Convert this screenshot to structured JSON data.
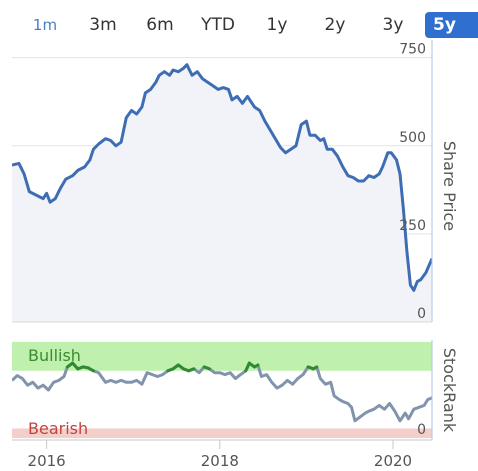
{
  "range_tabs": [
    "1m",
    "3m",
    "6m",
    "YTD",
    "1y",
    "2y",
    "3y",
    "5y"
  ],
  "active_tab": "5y",
  "colors": {
    "price_line": "#3f6db3",
    "price_fill": "#f1f3f9",
    "rank_line": "#8193ad",
    "bullish_band": "#bff0ae",
    "bullish_line": "#2e8b2e",
    "bearish_band": "#f3cfcc",
    "bullish_text": "#3d8b2f",
    "bearish_text": "#c0443f",
    "axis_right": "#aec6ea",
    "active_tab_bg": "#2f6fd0"
  },
  "chart_data": [
    {
      "type": "area",
      "name": "share-price",
      "ylabel": "Share Price",
      "ylim": [
        0,
        800
      ],
      "yticks": [
        "750",
        "500",
        "250",
        "0"
      ],
      "ytick_values": [
        750,
        500,
        250,
        0
      ],
      "xlim": [
        2015.6,
        2020.45
      ],
      "grid": true,
      "points": [
        [
          2015.6,
          445
        ],
        [
          2015.68,
          450
        ],
        [
          2015.74,
          420
        ],
        [
          2015.8,
          370
        ],
        [
          2015.88,
          360
        ],
        [
          2015.96,
          350
        ],
        [
          2016.0,
          365
        ],
        [
          2016.04,
          340
        ],
        [
          2016.1,
          350
        ],
        [
          2016.16,
          380
        ],
        [
          2016.22,
          405
        ],
        [
          2016.3,
          415
        ],
        [
          2016.36,
          430
        ],
        [
          2016.44,
          440
        ],
        [
          2016.5,
          460
        ],
        [
          2016.54,
          490
        ],
        [
          2016.6,
          505
        ],
        [
          2016.68,
          520
        ],
        [
          2016.74,
          515
        ],
        [
          2016.8,
          500
        ],
        [
          2016.86,
          510
        ],
        [
          2016.92,
          580
        ],
        [
          2016.98,
          600
        ],
        [
          2017.04,
          590
        ],
        [
          2017.1,
          610
        ],
        [
          2017.14,
          650
        ],
        [
          2017.2,
          660
        ],
        [
          2017.26,
          680
        ],
        [
          2017.3,
          700
        ],
        [
          2017.36,
          710
        ],
        [
          2017.42,
          700
        ],
        [
          2017.46,
          715
        ],
        [
          2017.52,
          710
        ],
        [
          2017.58,
          720
        ],
        [
          2017.62,
          730
        ],
        [
          2017.68,
          700
        ],
        [
          2017.74,
          710
        ],
        [
          2017.8,
          690
        ],
        [
          2017.86,
          680
        ],
        [
          2017.92,
          670
        ],
        [
          2017.98,
          660
        ],
        [
          2018.04,
          665
        ],
        [
          2018.1,
          660
        ],
        [
          2018.14,
          630
        ],
        [
          2018.2,
          640
        ],
        [
          2018.26,
          620
        ],
        [
          2018.32,
          640
        ],
        [
          2018.4,
          610
        ],
        [
          2018.46,
          600
        ],
        [
          2018.52,
          570
        ],
        [
          2018.58,
          545
        ],
        [
          2018.64,
          520
        ],
        [
          2018.7,
          495
        ],
        [
          2018.76,
          480
        ],
        [
          2018.82,
          490
        ],
        [
          2018.88,
          500
        ],
        [
          2018.94,
          560
        ],
        [
          2019.0,
          570
        ],
        [
          2019.04,
          530
        ],
        [
          2019.1,
          530
        ],
        [
          2019.16,
          515
        ],
        [
          2019.2,
          520
        ],
        [
          2019.24,
          490
        ],
        [
          2019.3,
          490
        ],
        [
          2019.36,
          470
        ],
        [
          2019.42,
          440
        ],
        [
          2019.48,
          415
        ],
        [
          2019.54,
          410
        ],
        [
          2019.6,
          400
        ],
        [
          2019.66,
          400
        ],
        [
          2019.72,
          415
        ],
        [
          2019.78,
          410
        ],
        [
          2019.84,
          420
        ],
        [
          2019.88,
          440
        ],
        [
          2019.94,
          480
        ],
        [
          2019.98,
          480
        ],
        [
          2020.04,
          460
        ],
        [
          2020.08,
          420
        ],
        [
          2020.12,
          320
        ],
        [
          2020.16,
          200
        ],
        [
          2020.2,
          105
        ],
        [
          2020.24,
          90
        ],
        [
          2020.28,
          115
        ],
        [
          2020.32,
          120
        ],
        [
          2020.38,
          140
        ],
        [
          2020.45,
          180
        ]
      ]
    },
    {
      "type": "line",
      "name": "stockrank",
      "ylabel": "StockRank",
      "ylim": [
        -2,
        102
      ],
      "yticks": [
        "0"
      ],
      "ytick_values": [
        0
      ],
      "xlim": [
        2015.6,
        2020.45
      ],
      "bands": [
        {
          "label": "Bullish",
          "from": 70,
          "to": 100
        },
        {
          "label": "Bearish",
          "from": 0,
          "to": 10
        }
      ],
      "xticks": [
        "2016",
        "2018",
        "2020"
      ],
      "xtick_values": [
        2016,
        2018,
        2020
      ],
      "points": [
        [
          2015.6,
          60
        ],
        [
          2015.66,
          65
        ],
        [
          2015.72,
          62
        ],
        [
          2015.78,
          55
        ],
        [
          2015.84,
          58
        ],
        [
          2015.9,
          52
        ],
        [
          2015.96,
          55
        ],
        [
          2016.02,
          50
        ],
        [
          2016.08,
          58
        ],
        [
          2016.14,
          60
        ],
        [
          2016.2,
          64
        ],
        [
          2016.24,
          74
        ],
        [
          2016.3,
          78
        ],
        [
          2016.36,
          72
        ],
        [
          2016.42,
          74
        ],
        [
          2016.48,
          73
        ],
        [
          2016.54,
          70
        ],
        [
          2016.6,
          68
        ],
        [
          2016.68,
          58
        ],
        [
          2016.74,
          60
        ],
        [
          2016.8,
          58
        ],
        [
          2016.86,
          60
        ],
        [
          2016.92,
          58
        ],
        [
          2016.98,
          58
        ],
        [
          2017.04,
          60
        ],
        [
          2017.1,
          56
        ],
        [
          2017.16,
          68
        ],
        [
          2017.22,
          66
        ],
        [
          2017.28,
          64
        ],
        [
          2017.34,
          66
        ],
        [
          2017.4,
          70
        ],
        [
          2017.46,
          72
        ],
        [
          2017.52,
          76
        ],
        [
          2017.58,
          72
        ],
        [
          2017.64,
          70
        ],
        [
          2017.7,
          72
        ],
        [
          2017.76,
          68
        ],
        [
          2017.82,
          74
        ],
        [
          2017.88,
          72
        ],
        [
          2017.94,
          68
        ],
        [
          2018.0,
          68
        ],
        [
          2018.06,
          66
        ],
        [
          2018.12,
          68
        ],
        [
          2018.18,
          62
        ],
        [
          2018.24,
          66
        ],
        [
          2018.3,
          70
        ],
        [
          2018.34,
          78
        ],
        [
          2018.4,
          74
        ],
        [
          2018.44,
          76
        ],
        [
          2018.48,
          64
        ],
        [
          2018.54,
          66
        ],
        [
          2018.6,
          58
        ],
        [
          2018.66,
          52
        ],
        [
          2018.72,
          55
        ],
        [
          2018.78,
          60
        ],
        [
          2018.84,
          56
        ],
        [
          2018.9,
          62
        ],
        [
          2018.96,
          66
        ],
        [
          2019.02,
          74
        ],
        [
          2019.08,
          72
        ],
        [
          2019.12,
          74
        ],
        [
          2019.16,
          62
        ],
        [
          2019.22,
          56
        ],
        [
          2019.28,
          58
        ],
        [
          2019.32,
          44
        ],
        [
          2019.38,
          40
        ],
        [
          2019.42,
          38
        ],
        [
          2019.48,
          36
        ],
        [
          2019.52,
          32
        ],
        [
          2019.56,
          18
        ],
        [
          2019.62,
          22
        ],
        [
          2019.68,
          26
        ],
        [
          2019.72,
          28
        ],
        [
          2019.78,
          30
        ],
        [
          2019.84,
          34
        ],
        [
          2019.9,
          30
        ],
        [
          2019.96,
          36
        ],
        [
          2020.02,
          28
        ],
        [
          2020.08,
          18
        ],
        [
          2020.14,
          26
        ],
        [
          2020.18,
          20
        ],
        [
          2020.24,
          30
        ],
        [
          2020.3,
          32
        ],
        [
          2020.36,
          34
        ],
        [
          2020.4,
          40
        ],
        [
          2020.45,
          42
        ]
      ]
    }
  ]
}
